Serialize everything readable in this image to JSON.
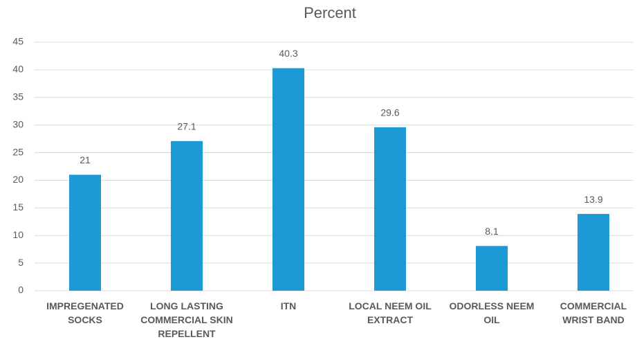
{
  "chart_data": {
    "type": "bar",
    "title": "Percent",
    "categories": [
      "IMPREGENATED SOCKS",
      "LONG LASTING COMMERCIAL SKIN REPELLENT",
      "ITN",
      "LOCAL NEEM OIL EXTRACT",
      "ODORLESS NEEM OIL",
      "COMMERCIAL WRIST BAND"
    ],
    "values": [
      21,
      27.1,
      40.3,
      29.6,
      8.1,
      13.9
    ],
    "color": "#1b9ad6",
    "ylim": [
      0,
      45
    ],
    "yticks": [
      0,
      5,
      10,
      15,
      20,
      25,
      30,
      35,
      40,
      45
    ],
    "grid": true
  }
}
